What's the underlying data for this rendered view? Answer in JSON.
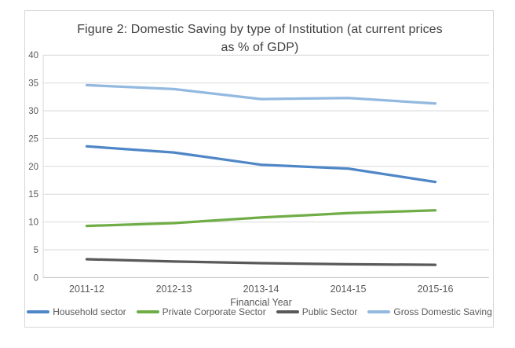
{
  "chart": {
    "title": "Figure 2: Domestic Saving by type of Institution (at current prices as % of GDP)"
  },
  "chart_data": {
    "type": "line",
    "title": "Figure 2: Domestic Saving by type of Institution (at current prices as % of GDP)",
    "categories": [
      "2011-12",
      "2012-13",
      "2013-14",
      "2014-15",
      "2015-16"
    ],
    "series": [
      {
        "name": "Household sector",
        "color": "#4f86c6",
        "values": [
          23.6,
          22.5,
          20.3,
          19.6,
          17.2
        ]
      },
      {
        "name": "Private Corporate Sector",
        "color": "#70ad47",
        "values": [
          9.3,
          9.8,
          10.8,
          11.6,
          12.1
        ]
      },
      {
        "name": "Public Sector",
        "color": "#595959",
        "values": [
          3.3,
          2.9,
          2.6,
          2.4,
          2.3
        ]
      },
      {
        "name": "Gross Domestic Saving",
        "color": "#93b9e0",
        "values": [
          34.6,
          33.9,
          32.1,
          32.3,
          31.3
        ]
      }
    ],
    "xlabel": "Financial Year",
    "ylabel": "",
    "ylim": [
      0,
      40
    ],
    "yticks": [
      0,
      5,
      10,
      15,
      20,
      25,
      30,
      35,
      40
    ],
    "grid": true,
    "gridline_color": "#d9d9d9",
    "axis_label_color": "#595959",
    "legend_position": "bottom"
  }
}
